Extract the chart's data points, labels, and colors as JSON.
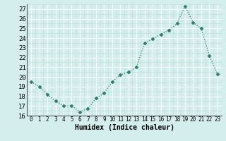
{
  "x": [
    0,
    1,
    2,
    3,
    4,
    5,
    6,
    7,
    8,
    9,
    10,
    11,
    12,
    13,
    14,
    15,
    16,
    17,
    18,
    19,
    20,
    21,
    22,
    23
  ],
  "y": [
    19.5,
    19.0,
    18.2,
    17.5,
    17.0,
    17.0,
    16.4,
    16.7,
    17.8,
    18.3,
    19.5,
    20.2,
    20.5,
    21.0,
    23.5,
    23.9,
    24.4,
    24.8,
    25.5,
    27.3,
    25.6,
    25.0,
    22.2,
    20.3
  ],
  "xlabel": "Humidex (Indice chaleur)",
  "ylim": [
    16,
    27.5
  ],
  "xlim": [
    -0.5,
    23.5
  ],
  "yticks": [
    16,
    17,
    18,
    19,
    20,
    21,
    22,
    23,
    24,
    25,
    26,
    27
  ],
  "xticks": [
    0,
    1,
    2,
    3,
    4,
    5,
    6,
    7,
    8,
    9,
    10,
    11,
    12,
    13,
    14,
    15,
    16,
    17,
    18,
    19,
    20,
    21,
    22,
    23
  ],
  "line_color": "#2e7d6e",
  "marker": "D",
  "marker_size": 2.5,
  "bg_color": "#d4eeee",
  "grid_major_color": "#ffffff",
  "grid_minor_color": "#b8dcdc",
  "spine_color": "#555555",
  "xlabel_fontsize": 7,
  "tick_fontsize": 5.5,
  "ytick_fontsize": 6.5
}
